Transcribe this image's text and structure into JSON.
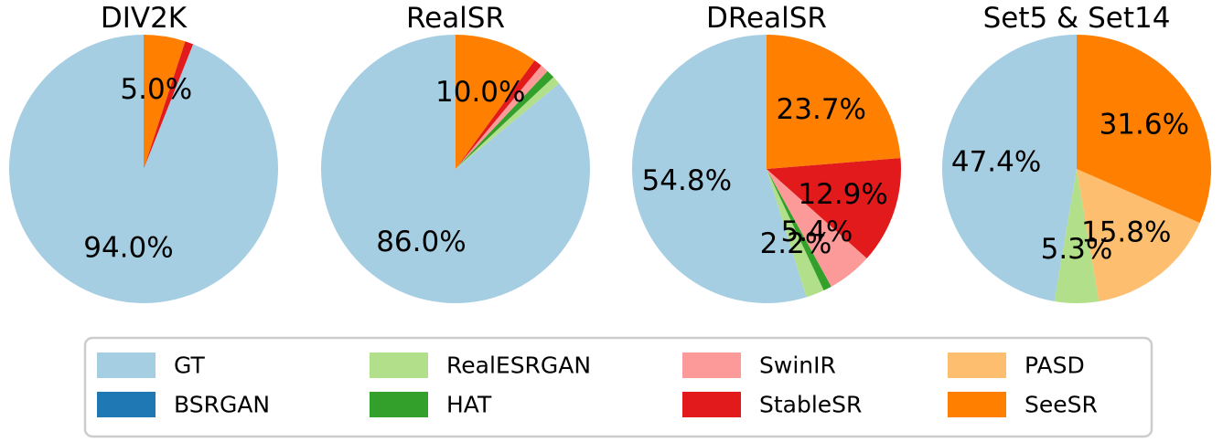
{
  "chart_data": {
    "type": "pie",
    "legend": {
      "placement": "bottom",
      "entries": [
        {
          "key": "GT",
          "label": "GT",
          "color": "#a6cee3"
        },
        {
          "key": "RealESRGAN",
          "label": "RealESRGAN",
          "color": "#b2df8a"
        },
        {
          "key": "SwinIR",
          "label": "SwinIR",
          "color": "#fb9a99"
        },
        {
          "key": "PASD",
          "label": "PASD",
          "color": "#fdbf6f"
        },
        {
          "key": "BSRGAN",
          "label": "BSRGAN",
          "color": "#1f78b4"
        },
        {
          "key": "HAT",
          "label": "HAT",
          "color": "#33a02c"
        },
        {
          "key": "StableSR",
          "label": "StableSR",
          "color": "#e31a1c"
        },
        {
          "key": "SeeSR",
          "label": "SeeSR",
          "color": "#ff7f00"
        }
      ]
    },
    "charts": [
      {
        "title": "DIV2K",
        "slices": [
          {
            "key": "GT",
            "value": 94.0,
            "label": "94.0%"
          },
          {
            "key": "BSRGAN",
            "value": 0.0,
            "label": ""
          },
          {
            "key": "RealESRGAN",
            "value": 0.0,
            "label": ""
          },
          {
            "key": "HAT",
            "value": 0.0,
            "label": ""
          },
          {
            "key": "SwinIR",
            "value": 0.0,
            "label": ""
          },
          {
            "key": "StableSR",
            "value": 1.0,
            "label": ""
          },
          {
            "key": "PASD",
            "value": 0.0,
            "label": ""
          },
          {
            "key": "SeeSR",
            "value": 5.0,
            "label": "5.0%"
          }
        ]
      },
      {
        "title": "RealSR",
        "slices": [
          {
            "key": "GT",
            "value": 86.0,
            "label": "86.0%"
          },
          {
            "key": "BSRGAN",
            "value": 0.0,
            "label": ""
          },
          {
            "key": "RealESRGAN",
            "value": 1.0,
            "label": ""
          },
          {
            "key": "HAT",
            "value": 1.0,
            "label": ""
          },
          {
            "key": "SwinIR",
            "value": 1.0,
            "label": ""
          },
          {
            "key": "StableSR",
            "value": 1.0,
            "label": ""
          },
          {
            "key": "PASD",
            "value": 0.0,
            "label": ""
          },
          {
            "key": "SeeSR",
            "value": 10.0,
            "label": "10.0%"
          }
        ]
      },
      {
        "title": "DRealSR",
        "slices": [
          {
            "key": "GT",
            "value": 54.8,
            "label": "54.8%"
          },
          {
            "key": "BSRGAN",
            "value": 0.0,
            "label": ""
          },
          {
            "key": "RealESRGAN",
            "value": 2.2,
            "label": "2.2%"
          },
          {
            "key": "HAT",
            "value": 1.0,
            "label": ""
          },
          {
            "key": "SwinIR",
            "value": 5.4,
            "label": "5.4%"
          },
          {
            "key": "StableSR",
            "value": 12.9,
            "label": "12.9%"
          },
          {
            "key": "PASD",
            "value": 0.0,
            "label": ""
          },
          {
            "key": "SeeSR",
            "value": 23.7,
            "label": "23.7%"
          }
        ]
      },
      {
        "title": "Set5 & Set14",
        "slices": [
          {
            "key": "GT",
            "value": 47.4,
            "label": "47.4%"
          },
          {
            "key": "BSRGAN",
            "value": 0.0,
            "label": ""
          },
          {
            "key": "RealESRGAN",
            "value": 5.3,
            "label": "5.3%"
          },
          {
            "key": "HAT",
            "value": 0.0,
            "label": ""
          },
          {
            "key": "SwinIR",
            "value": 0.0,
            "label": ""
          },
          {
            "key": "StableSR",
            "value": 0.0,
            "label": ""
          },
          {
            "key": "PASD",
            "value": 15.8,
            "label": "15.8%"
          },
          {
            "key": "SeeSR",
            "value": 31.6,
            "label": "31.6%"
          }
        ]
      }
    ]
  }
}
